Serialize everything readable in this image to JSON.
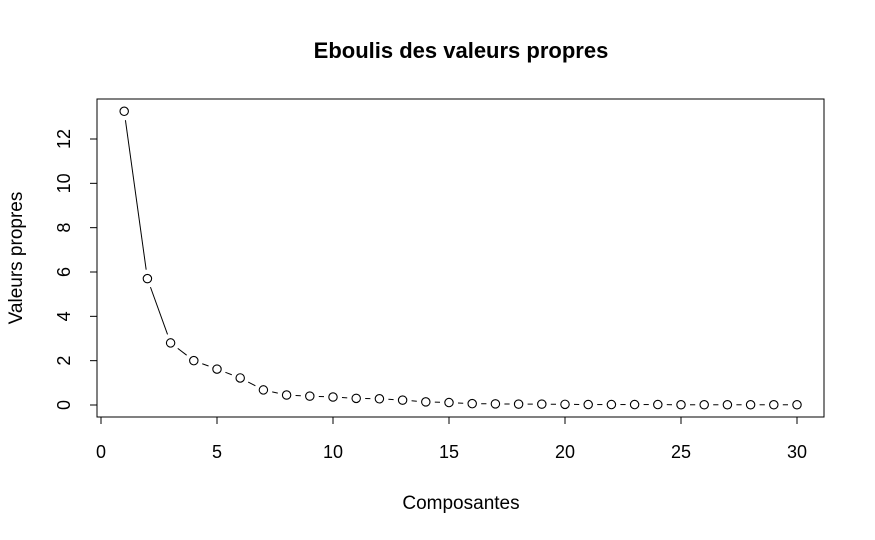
{
  "chart_data": {
    "type": "line",
    "title": "Eboulis des valeurs propres",
    "xlabel": "Composantes",
    "ylabel": "Valeurs propres",
    "xlim": [
      0,
      30
    ],
    "ylim": [
      0,
      12
    ],
    "x_ticks": [
      "0",
      "5",
      "10",
      "15",
      "20",
      "25",
      "30"
    ],
    "y_ticks": [
      "0",
      "2",
      "4",
      "6",
      "8",
      "10",
      "12"
    ],
    "grid": false,
    "legend": "none",
    "series": [
      {
        "x": [
          1,
          2,
          3,
          4,
          5,
          6,
          7,
          8,
          9,
          10,
          11,
          12,
          13,
          14,
          15,
          16,
          17,
          18,
          19,
          20,
          21,
          22,
          23,
          24,
          25,
          26,
          27,
          28,
          29,
          30
        ],
        "values": [
          13.25,
          5.7,
          2.8,
          2.0,
          1.62,
          1.22,
          0.68,
          0.45,
          0.4,
          0.36,
          0.3,
          0.28,
          0.22,
          0.14,
          0.11,
          0.06,
          0.05,
          0.04,
          0.04,
          0.03,
          0.02,
          0.02,
          0.02,
          0.02,
          0.01,
          0.01,
          0.01,
          0.01,
          0.01,
          0.01
        ]
      }
    ]
  },
  "colors": {
    "line": "#000000",
    "point_stroke": "#000000",
    "point_fill": "#ffffff",
    "frame": "#000000"
  }
}
